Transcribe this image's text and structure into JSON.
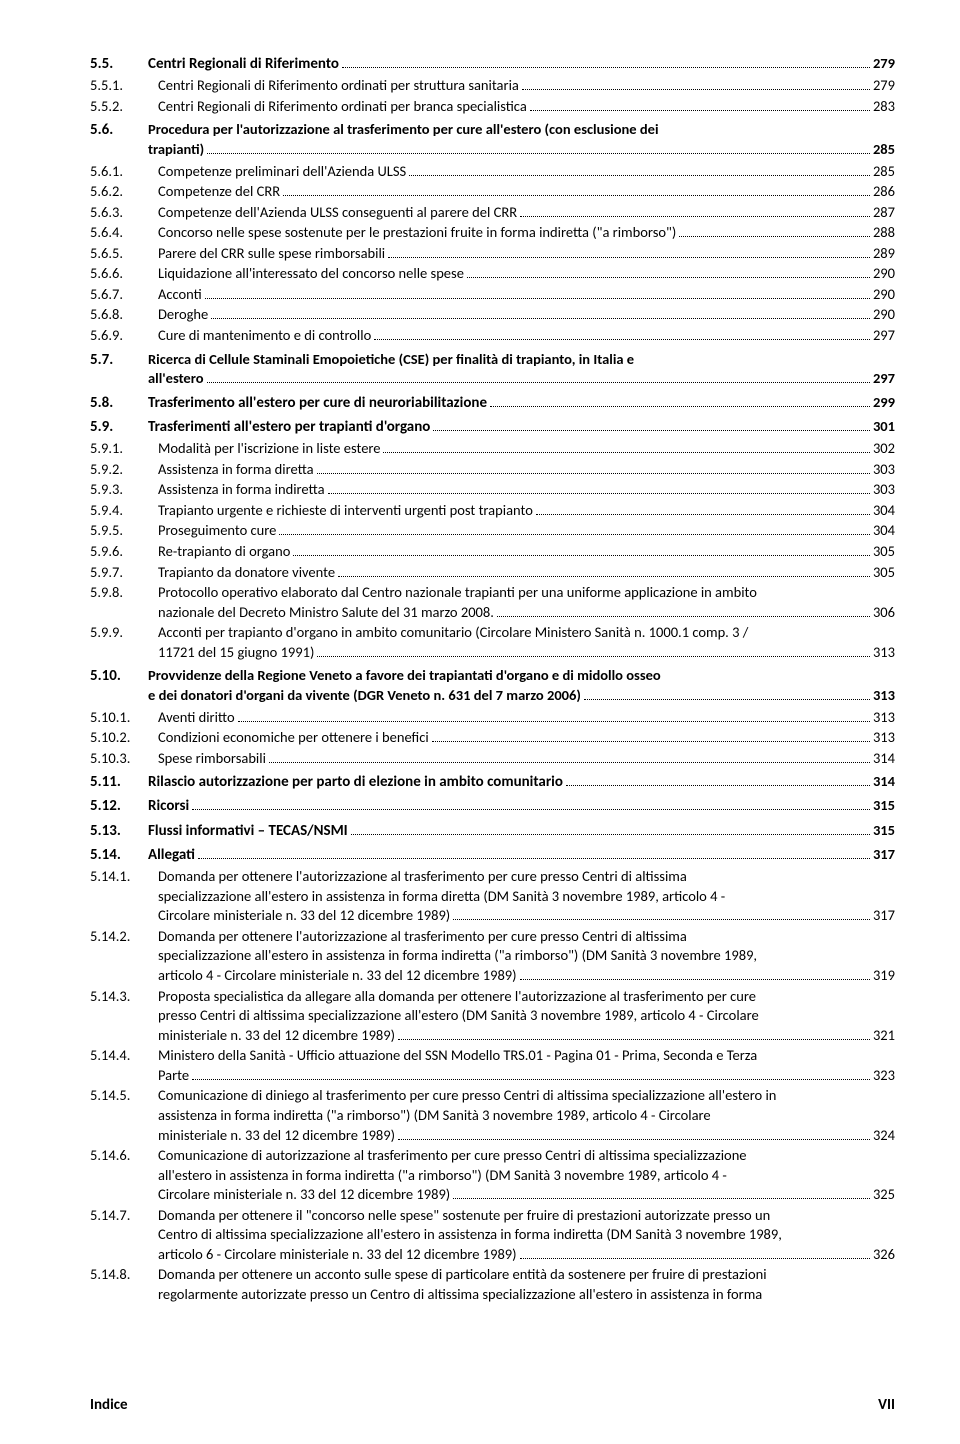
{
  "footer": {
    "left": "Indice",
    "right": "VII"
  },
  "entries": [
    {
      "lvl": 2,
      "num": "5.5.",
      "label": "Centri Regionali di Riferimento",
      "page": "279"
    },
    {
      "lvl": 3,
      "num": "5.5.1.",
      "label": "Centri Regionali di Riferimento ordinati per struttura sanitaria",
      "page": "279"
    },
    {
      "lvl": 3,
      "num": "5.5.2.",
      "label": "Centri Regionali di Riferimento ordinati per branca specialistica",
      "page": "283"
    },
    {
      "lvl": 2,
      "num": "5.6.",
      "label": "Procedura per l'autorizzazione al trasferimento per cure all'estero (con esclusione dei",
      "cont": "trapianti)",
      "page": "285"
    },
    {
      "lvl": 3,
      "num": "5.6.1.",
      "label": "Competenze preliminari dell'Azienda ULSS",
      "page": "285"
    },
    {
      "lvl": 3,
      "num": "5.6.2.",
      "label": "Competenze del CRR",
      "page": "286"
    },
    {
      "lvl": 3,
      "num": "5.6.3.",
      "label": "Competenze dell'Azienda ULSS conseguenti al parere del CRR",
      "page": "287"
    },
    {
      "lvl": 3,
      "num": "5.6.4.",
      "label": "Concorso nelle spese sostenute per le prestazioni fruite in forma indiretta (\"a rimborso\")",
      "page": "288"
    },
    {
      "lvl": 3,
      "num": "5.6.5.",
      "label": "Parere del CRR sulle spese rimborsabili",
      "page": "289"
    },
    {
      "lvl": 3,
      "num": "5.6.6.",
      "label": "Liquidazione all'interessato del concorso nelle spese",
      "page": "290"
    },
    {
      "lvl": 3,
      "num": "5.6.7.",
      "label": "Acconti",
      "page": "290"
    },
    {
      "lvl": 3,
      "num": "5.6.8.",
      "label": "Deroghe",
      "page": "290"
    },
    {
      "lvl": 3,
      "num": "5.6.9.",
      "label": "Cure di mantenimento e di controllo",
      "page": "297"
    },
    {
      "lvl": 2,
      "num": "5.7.",
      "label": "Ricerca di Cellule Staminali Emopoietiche (CSE) per finalità di trapianto, in Italia e",
      "cont": "all'estero",
      "page": "297"
    },
    {
      "lvl": 2,
      "num": "5.8.",
      "label": "Trasferimento all'estero per cure di neuroriabilitazione",
      "page": "299"
    },
    {
      "lvl": 2,
      "num": "5.9.",
      "label": "Trasferimenti all'estero per trapianti d'organo",
      "page": "301"
    },
    {
      "lvl": 3,
      "num": "5.9.1.",
      "label": "Modalità per l'iscrizione in liste estere",
      "page": "302"
    },
    {
      "lvl": 3,
      "num": "5.9.2.",
      "label": "Assistenza in forma diretta",
      "page": "303"
    },
    {
      "lvl": 3,
      "num": "5.9.3.",
      "label": "Assistenza in forma indiretta",
      "page": "303"
    },
    {
      "lvl": 3,
      "num": "5.9.4.",
      "label": "Trapianto urgente e richieste di interventi urgenti post trapianto",
      "page": "304"
    },
    {
      "lvl": 3,
      "num": "5.9.5.",
      "label": "Proseguimento cure",
      "page": "304"
    },
    {
      "lvl": 3,
      "num": "5.9.6.",
      "label": "Re-trapianto di organo",
      "page": "305"
    },
    {
      "lvl": 3,
      "num": "5.9.7.",
      "label": "Trapianto da donatore vivente",
      "page": "305"
    },
    {
      "lvl": 3,
      "num": "5.9.8.",
      "label": "Protocollo operativo elaborato dal Centro nazionale trapianti per una uniforme applicazione in ambito",
      "cont": "nazionale del Decreto Ministro Salute del 31 marzo 2008.",
      "page": "306"
    },
    {
      "lvl": 3,
      "num": "5.9.9.",
      "label": "Acconti per trapianto d'organo in ambito comunitario (Circolare Ministero Sanità n. 1000.1 comp. 3 /",
      "cont": "11721 del 15 giugno 1991)",
      "page": "313"
    },
    {
      "lvl": 2,
      "num": "5.10.",
      "label": "Provvidenze della Regione Veneto a favore dei trapiantati d'organo e di midollo osseo",
      "cont": "e dei donatori d'organi da vivente (DGR Veneto n. 631 del 7 marzo 2006)",
      "page": "313"
    },
    {
      "lvl": 3,
      "num": "5.10.1.",
      "label": "Aventi diritto",
      "page": "313"
    },
    {
      "lvl": 3,
      "num": "5.10.2.",
      "label": "Condizioni economiche per ottenere i benefici",
      "page": "313"
    },
    {
      "lvl": 3,
      "num": "5.10.3.",
      "label": "Spese rimborsabili",
      "page": "314"
    },
    {
      "lvl": 2,
      "num": "5.11.",
      "label": "Rilascio autorizzazione per parto di elezione in ambito comunitario",
      "page": "314"
    },
    {
      "lvl": 2,
      "num": "5.12.",
      "label": "Ricorsi",
      "page": "315"
    },
    {
      "lvl": 2,
      "num": "5.13.",
      "label": "Flussi informativi – TECAS/NSMI",
      "page": "315"
    },
    {
      "lvl": 2,
      "num": "5.14.",
      "label": "Allegati",
      "page": "317"
    },
    {
      "lvl": 3,
      "num": "5.14.1.",
      "label": "Domanda per ottenere l'autorizzazione al trasferimento per cure presso Centri di altissima",
      "cont": "specializzazione all'estero in assistenza in forma diretta (DM Sanità 3 novembre 1989, articolo 4  -",
      "cont2": "Circolare ministeriale n. 33 del 12 dicembre 1989)",
      "page": "317"
    },
    {
      "lvl": 3,
      "num": "5.14.2.",
      "label": "Domanda per ottenere l'autorizzazione al trasferimento per cure presso Centri di altissima",
      "cont": "specializzazione all'estero in assistenza in forma indiretta (\"a rimborso\") (DM Sanità 3 novembre 1989,",
      "cont2": "articolo 4  -  Circolare ministeriale n. 33 del 12 dicembre 1989)",
      "page": "319"
    },
    {
      "lvl": 3,
      "num": "5.14.3.",
      "label": "Proposta specialistica da allegare alla domanda per ottenere l'autorizzazione al trasferimento per cure",
      "cont": "presso Centri di altissima specializzazione all'estero (DM Sanità 3 novembre 1989, articolo 4  -  Circolare",
      "cont2": "ministeriale n. 33 del 12 dicembre 1989)",
      "page": "321"
    },
    {
      "lvl": 3,
      "num": "5.14.4.",
      "label": "Ministero della Sanità - Ufficio attuazione del SSN Modello TRS.01 - Pagina 01 - Prima, Seconda e Terza",
      "cont": "Parte",
      "page": "323"
    },
    {
      "lvl": 3,
      "num": "5.14.5.",
      "label": "Comunicazione di diniego al trasferimento per cure presso Centri di altissima specializzazione all'estero in",
      "cont": "assistenza in forma indiretta (\"a rimborso\") (DM Sanità 3 novembre 1989, articolo 4 - Circolare",
      "cont2": "ministeriale n. 33 del 12 dicembre 1989)",
      "page": "324"
    },
    {
      "lvl": 3,
      "num": "5.14.6.",
      "label": "Comunicazione di autorizzazione al trasferimento per cure presso Centri di altissima specializzazione",
      "cont": "all'estero in assistenza in forma indiretta (\"a rimborso\") (DM Sanità 3 novembre 1989, articolo 4  -",
      "cont2": "Circolare ministeriale n. 33 del 12 dicembre 1989)",
      "page": "325"
    },
    {
      "lvl": 3,
      "num": "5.14.7.",
      "label": "Domanda per ottenere il \"concorso nelle spese\" sostenute per fruire di prestazioni autorizzate presso un",
      "cont": "Centro di altissima specializzazione all'estero in assistenza in forma indiretta (DM Sanità 3 novembre 1989,",
      "cont2": "articolo 6  -  Circolare ministeriale n. 33 del 12 dicembre 1989)",
      "page": "326"
    },
    {
      "lvl": 3,
      "num": "5.14.8.",
      "label": "Domanda per ottenere un acconto sulle spese di particolare entità da sostenere per fruire di prestazioni",
      "cont": "regolarmente autorizzate presso un Centro di altissima specializzazione all'estero in assistenza in forma",
      "nopage": true
    }
  ]
}
